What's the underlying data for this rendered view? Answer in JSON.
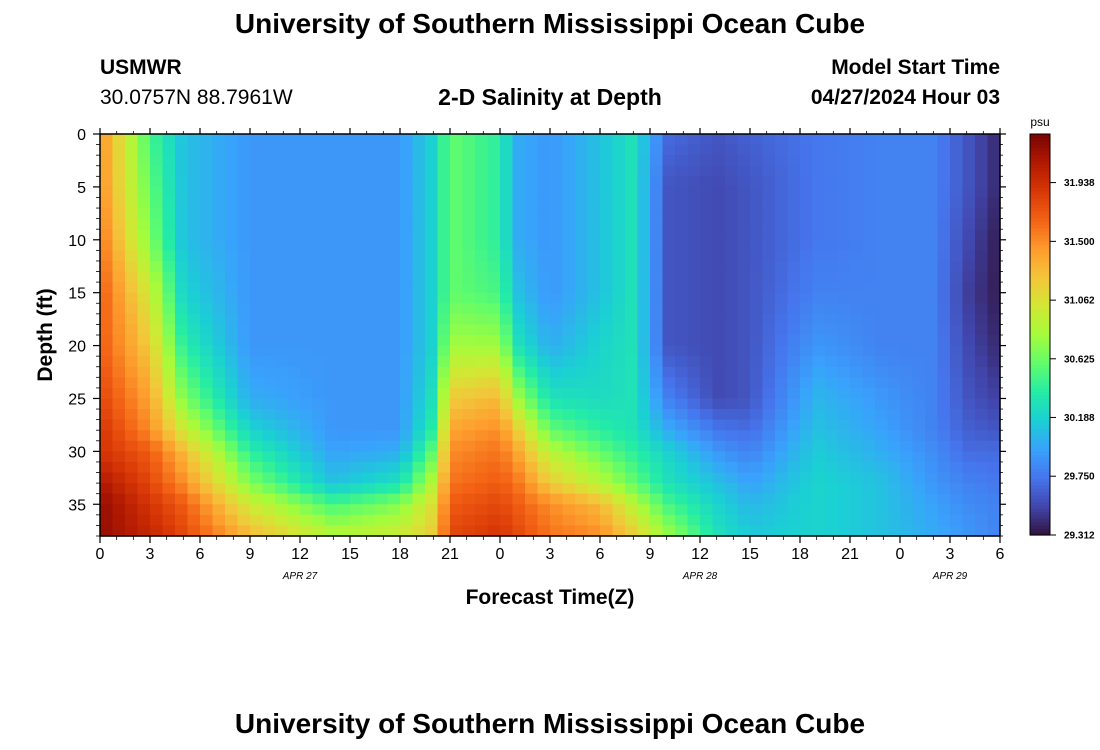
{
  "title": "University of Southern Mississippi Ocean Cube",
  "header": {
    "station": "USMWR",
    "coordinates": "30.0757N  88.7961W",
    "subtitle": "2-D Salinity at Depth",
    "start_label": "Model Start Time",
    "start_value": "04/27/2024 Hour 03"
  },
  "bottom_title": "University of Southern Mississippi Ocean Cube",
  "chart_data": {
    "type": "heatmap",
    "title": "2-D Salinity at Depth",
    "xlabel": "Forecast Time(Z)",
    "ylabel": "Depth (ft)",
    "x_range_hours_from_apr27_00z": [
      0,
      54
    ],
    "x_tick_labels": [
      "0",
      "3",
      "6",
      "9",
      "12",
      "15",
      "18",
      "21",
      "0",
      "3",
      "6",
      "9",
      "12",
      "15",
      "18",
      "21",
      "0",
      "3",
      "6"
    ],
    "date_labels": [
      {
        "label": "APR 27",
        "at_tick": "12"
      },
      {
        "label": "APR 28",
        "at_tick": "12"
      },
      {
        "label": "APR 29",
        "at_tick": "3"
      }
    ],
    "ylim": [
      0,
      38
    ],
    "y_ticks": [
      0,
      5,
      10,
      15,
      20,
      25,
      30,
      35
    ],
    "colorbar": {
      "unit": "psu",
      "min": 29.312,
      "max": 32.3,
      "tick_values": [
        31.938,
        31.5,
        31.062,
        30.625,
        30.188,
        29.75,
        29.312
      ],
      "tick_labels": [
        "31.938",
        "31.500",
        "31.062",
        "30.625",
        "30.188",
        "29.750",
        "29.312"
      ],
      "colors": [
        "#30123b",
        "#4145ab",
        "#4675ed",
        "#39a2fc",
        "#1bcfd4",
        "#24eca6",
        "#61fc6c",
        "#a4fc3b",
        "#d1e834",
        "#f3c63a",
        "#fe9b2d",
        "#f36315",
        "#d93806",
        "#b11901",
        "#7a0402"
      ]
    },
    "columns_hours": [
      0,
      3,
      5,
      9,
      14,
      18,
      20,
      21,
      24,
      25,
      27,
      30,
      32,
      34,
      37,
      39,
      43,
      47,
      50,
      52,
      54
    ],
    "depth_rows_ft": [
      0,
      5,
      10,
      15,
      20,
      25,
      28,
      30,
      33,
      35,
      38
    ],
    "salinity_psu": [
      [
        31.5,
        31.5,
        31.6,
        31.7,
        31.7,
        31.8,
        31.9,
        31.9,
        32.1,
        32.2,
        32.2
      ],
      [
        30.5,
        30.6,
        30.7,
        31.0,
        31.2,
        31.4,
        31.5,
        31.7,
        31.8,
        31.9,
        32.0
      ],
      [
        30.1,
        30.1,
        30.1,
        30.2,
        30.4,
        30.7,
        31.0,
        31.3,
        31.5,
        31.7,
        31.8
      ],
      [
        29.9,
        29.9,
        29.9,
        29.9,
        29.9,
        30.0,
        30.2,
        30.4,
        30.7,
        31.0,
        31.3
      ],
      [
        29.9,
        29.9,
        29.9,
        29.9,
        29.9,
        29.9,
        29.9,
        29.95,
        30.1,
        30.5,
        30.9
      ],
      [
        29.9,
        29.9,
        29.9,
        29.9,
        29.9,
        29.9,
        29.9,
        30.0,
        30.3,
        30.7,
        31.0
      ],
      [
        30.2,
        30.2,
        30.2,
        30.2,
        30.2,
        30.3,
        30.4,
        30.6,
        30.9,
        31.1,
        31.2
      ],
      [
        30.6,
        30.6,
        30.6,
        30.6,
        30.8,
        31.2,
        31.4,
        31.5,
        31.6,
        31.7,
        31.8
      ],
      [
        30.4,
        30.4,
        30.4,
        30.5,
        30.8,
        31.3,
        31.5,
        31.6,
        31.7,
        31.8,
        31.9
      ],
      [
        30.0,
        30.0,
        30.0,
        30.1,
        30.3,
        30.8,
        31.2,
        31.4,
        31.6,
        31.7,
        31.8
      ],
      [
        29.9,
        29.9,
        29.9,
        29.9,
        30.0,
        30.3,
        30.6,
        30.9,
        31.2,
        31.5,
        31.6
      ],
      [
        30.1,
        30.1,
        30.1,
        30.1,
        30.2,
        30.25,
        30.4,
        30.6,
        30.9,
        31.3,
        31.5
      ],
      [
        30.3,
        30.3,
        30.3,
        30.3,
        30.3,
        30.3,
        30.3,
        30.4,
        30.6,
        30.9,
        31.2
      ],
      [
        29.7,
        29.6,
        29.6,
        29.6,
        29.6,
        29.8,
        30.0,
        30.2,
        30.3,
        30.5,
        30.8
      ],
      [
        29.6,
        29.55,
        29.55,
        29.55,
        29.55,
        29.55,
        29.75,
        29.9,
        30.1,
        30.2,
        30.3
      ],
      [
        29.65,
        29.6,
        29.6,
        29.6,
        29.6,
        29.6,
        29.7,
        29.8,
        29.95,
        30.05,
        30.15
      ],
      [
        29.75,
        29.75,
        29.75,
        29.8,
        29.9,
        30.05,
        30.1,
        30.15,
        30.2,
        30.2,
        30.2
      ],
      [
        29.8,
        29.8,
        29.8,
        29.8,
        29.8,
        29.9,
        29.95,
        30.0,
        30.1,
        30.1,
        30.1
      ],
      [
        29.8,
        29.8,
        29.8,
        29.8,
        29.8,
        29.8,
        29.8,
        29.85,
        29.9,
        29.95,
        30.0
      ],
      [
        29.6,
        29.6,
        29.55,
        29.5,
        29.55,
        29.6,
        29.65,
        29.7,
        29.8,
        29.85,
        29.9
      ],
      [
        29.4,
        29.4,
        29.35,
        29.35,
        29.4,
        29.5,
        29.6,
        29.7,
        29.75,
        29.8,
        29.8
      ]
    ]
  }
}
